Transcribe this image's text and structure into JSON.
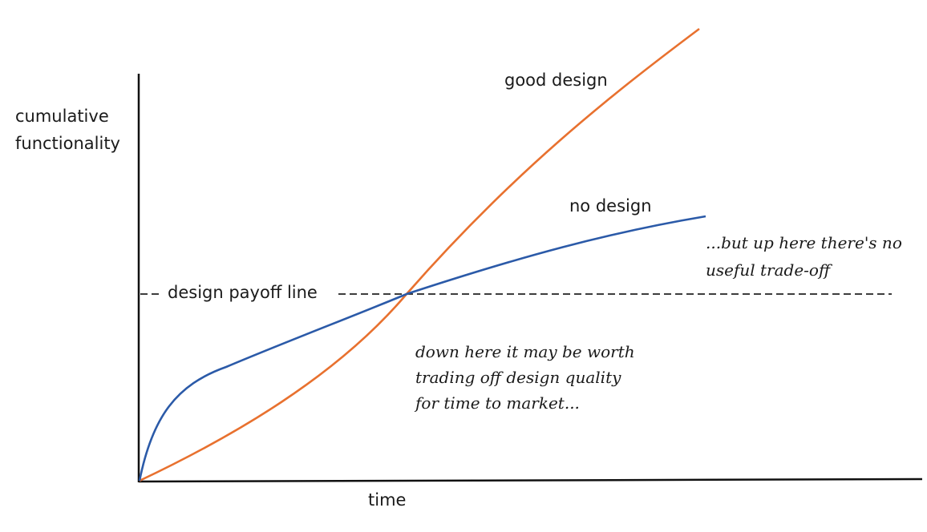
{
  "diagram": {
    "axes": {
      "x_label": "time",
      "y_label_lines": [
        "cumulative",
        "functionality"
      ]
    },
    "curves": {
      "good_design": {
        "label": "good design",
        "color": "#e8712f"
      },
      "no_design": {
        "label": "no design",
        "color": "#2b5aa8"
      }
    },
    "payoff_line": {
      "label": "design payoff line"
    },
    "annotations": {
      "below": [
        "down here it may be worth",
        "trading off design quality",
        "for time to market..."
      ],
      "above": [
        "...but up here there's no",
        "useful trade-off"
      ]
    }
  }
}
